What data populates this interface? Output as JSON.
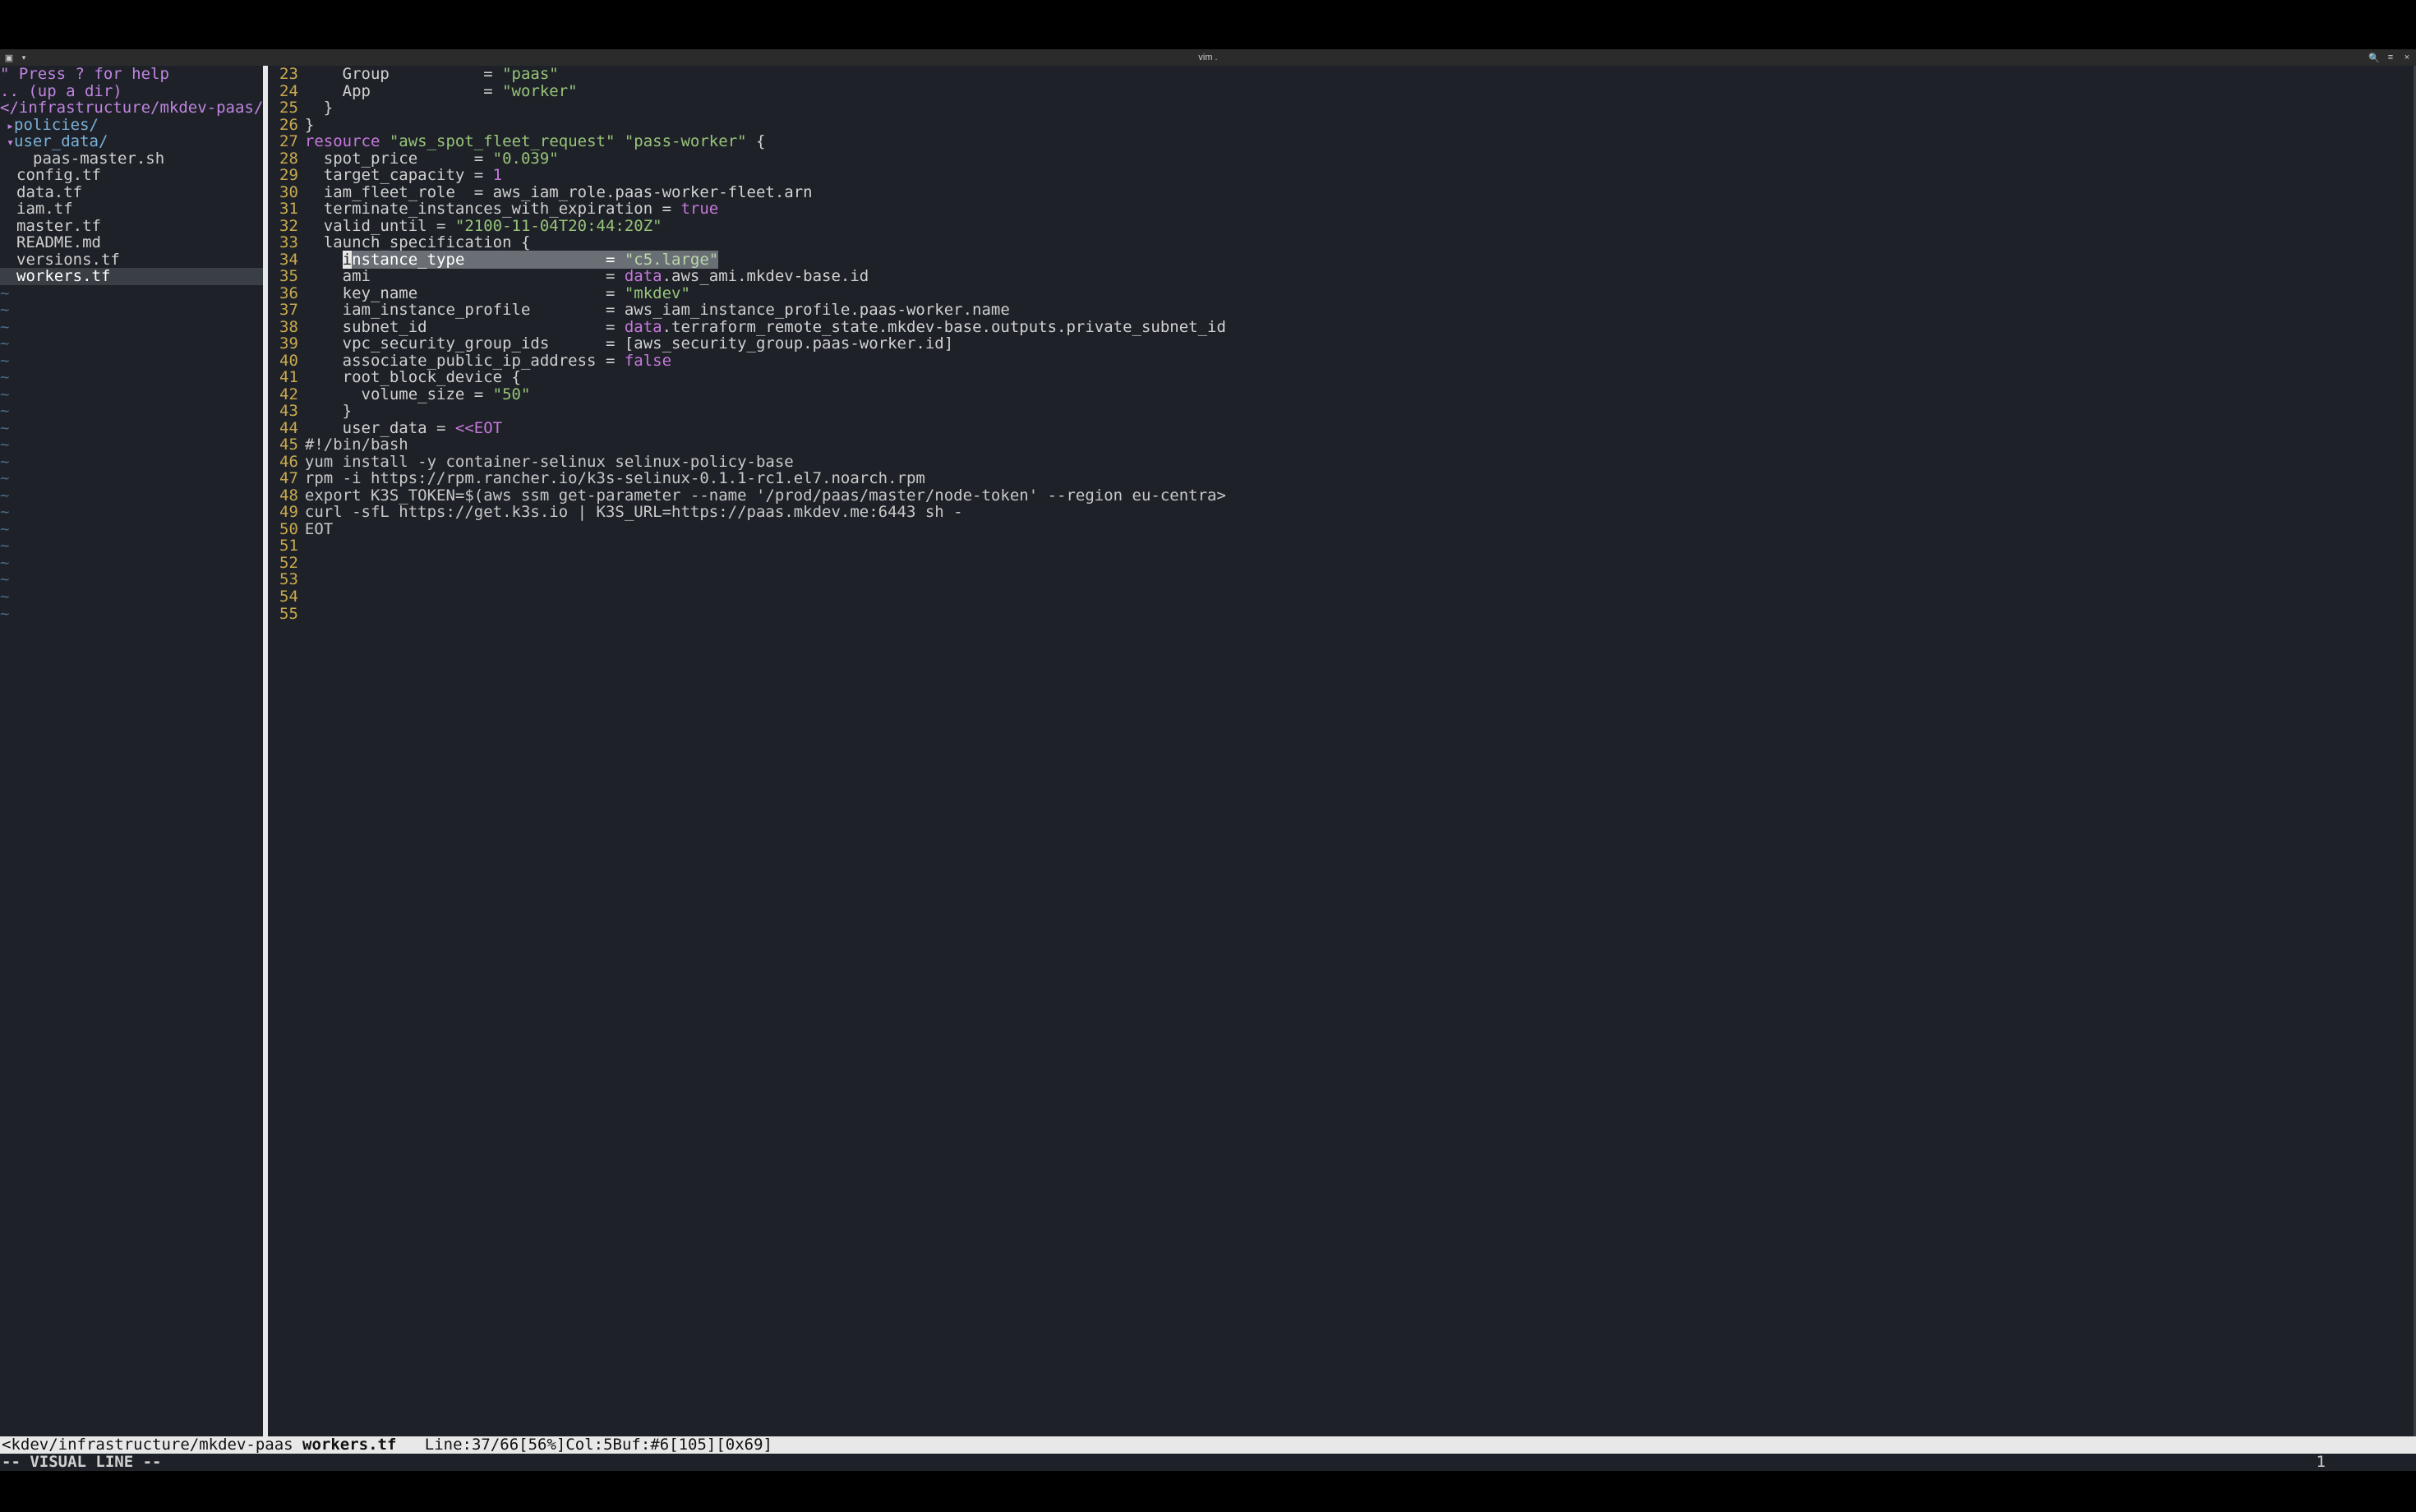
{
  "window": {
    "title": "vim ."
  },
  "tree": {
    "help": "\" Press ? for help",
    "blank": "",
    "updir": ".. (up a dir)",
    "path": "</infrastructure/mkdev-paas/",
    "items": [
      {
        "type": "dir",
        "label": "policies/",
        "state": "closed",
        "indent": 1
      },
      {
        "type": "dir",
        "label": "user_data/",
        "state": "open",
        "indent": 1
      },
      {
        "type": "file",
        "label": "paas-master.sh",
        "indent": 2
      },
      {
        "type": "file",
        "label": "config.tf",
        "indent": 1
      },
      {
        "type": "file",
        "label": "data.tf",
        "indent": 1
      },
      {
        "type": "file",
        "label": "iam.tf",
        "indent": 1
      },
      {
        "type": "file",
        "label": "master.tf",
        "indent": 1
      },
      {
        "type": "file",
        "label": "README.md",
        "indent": 1
      },
      {
        "type": "file",
        "label": "versions.tf",
        "indent": 1
      },
      {
        "type": "file",
        "label": "workers.tf",
        "indent": 1,
        "selected": true
      }
    ]
  },
  "editor": {
    "first_line": 23,
    "highlighted_line": 37,
    "lines": {
      "23": "    Group          = \"paas\"",
      "24": "    App            = \"worker\"",
      "25": "  }",
      "26": "}",
      "27": "",
      "28": "resource \"aws_spot_fleet_request\" \"pass-worker\" {",
      "29": "  spot_price      = \"0.039\"",
      "30": "  target_capacity = 1",
      "31": "  iam_fleet_role  = aws_iam_role.paas-worker-fleet.arn",
      "32": "  terminate_instances_with_expiration = true",
      "33": "",
      "34": "  valid_until = \"2100-11-04T20:44:20Z\"",
      "35": "",
      "36": "  launch_specification {",
      "37": "    instance_type               = \"c5.large\"",
      "38": "    ami                         = data.aws_ami.mkdev-base.id",
      "39": "    key_name                    = \"mkdev\"",
      "40": "    iam_instance_profile        = aws_iam_instance_profile.paas-worker.name",
      "41": "    subnet_id                   = data.terraform_remote_state.mkdev-base.outputs.private_subnet_id",
      "42": "    vpc_security_group_ids      = [aws_security_group.paas-worker.id]",
      "43": "    associate_public_ip_address = false",
      "44": "",
      "45": "    root_block_device {",
      "46": "      volume_size = \"50\"",
      "47": "    }",
      "48": "",
      "49": "    user_data = <<EOT",
      "50": "#!/bin/bash",
      "51": "yum install -y container-selinux selinux-policy-base",
      "52": "rpm -i https://rpm.rancher.io/k3s-selinux-0.1.1-rc1.el7.noarch.rpm",
      "53": "export K3S_TOKEN=$(aws ssm get-parameter --name '/prod/paas/master/node-token' --region eu-centra>",
      "54": "curl -sfL https://get.k3s.io | K3S_URL=https://paas.mkdev.me:6443 sh -",
      "55": "EOT"
    }
  },
  "status": {
    "path": "<kdev/infrastructure/mkdev-paas ",
    "filename": "workers.tf",
    "info": "   Line:37/66[56%]Col:5Buf:#6[105][0x69]"
  },
  "mode": {
    "text": "-- VISUAL LINE --",
    "count": "1"
  },
  "colors": {
    "bg": "#1e2228",
    "gutter": "#c9a94f",
    "keyword": "#c678dd",
    "string": "#98c379",
    "text": "#d0d0d0",
    "status_bg": "#e8e8e8",
    "highlight_bg": "#6a6f76",
    "tree_dir": "#7bb0d8",
    "tree_path": "#c084e0"
  }
}
